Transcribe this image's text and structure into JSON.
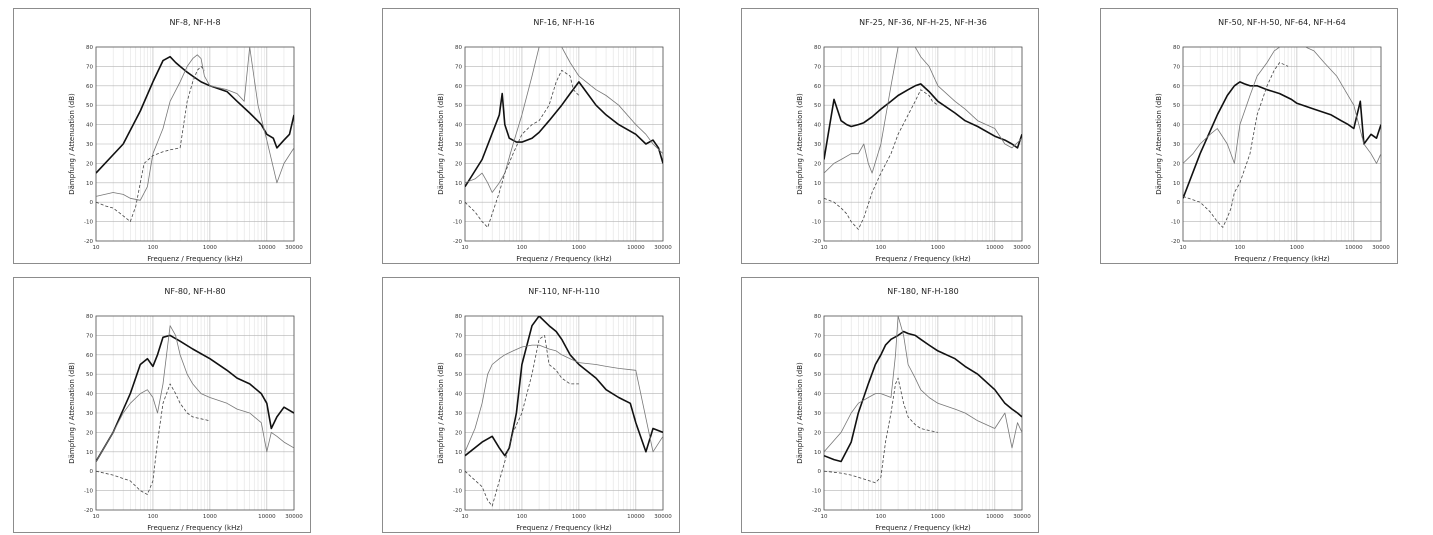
{
  "axis": {
    "xlabel": "Frequenz / Frequency (kHz)",
    "ylabel": "Dämpfung / Attenuation (dB)",
    "xlim": [
      10,
      30000
    ],
    "ylim": [
      -20,
      80
    ],
    "xscale": "log",
    "yticks": [
      -20,
      -10,
      0,
      10,
      20,
      30,
      40,
      50,
      60,
      70,
      80
    ],
    "xticks": [
      10,
      100,
      1000,
      10000,
      30000
    ]
  },
  "chart_data": [
    {
      "type": "line",
      "title": "NF-8, NF-H-8",
      "series": [
        {
          "style": "bold",
          "x": [
            10,
            30,
            60,
            100,
            150,
            200,
            250,
            300,
            400,
            500,
            700,
            1000,
            2000,
            3000,
            5000,
            8000,
            10000,
            13000,
            15000,
            20000,
            25000,
            30000
          ],
          "y": [
            15,
            30,
            47,
            62,
            73,
            75,
            72,
            70,
            67,
            65,
            62,
            60,
            57,
            52,
            46,
            40,
            35,
            33,
            28,
            32,
            35,
            45
          ]
        },
        {
          "style": "thin",
          "x": [
            10,
            20,
            30,
            40,
            60,
            80,
            100,
            150,
            200,
            300,
            400,
            500,
            600,
            700,
            800,
            1000,
            2000,
            3000,
            4000,
            5000,
            7000,
            10000,
            15000,
            20000,
            30000
          ],
          "y": [
            3,
            5,
            4,
            2,
            1,
            8,
            25,
            38,
            52,
            62,
            70,
            74,
            76,
            74,
            65,
            60,
            58,
            56,
            52,
            80,
            50,
            32,
            10,
            20,
            28
          ]
        },
        {
          "style": "dashed",
          "x": [
            10,
            15,
            20,
            30,
            40,
            50,
            70,
            100,
            150,
            200,
            300,
            400,
            500,
            600,
            700,
            800
          ],
          "y": [
            0,
            -2,
            -3,
            -7,
            -10,
            -2,
            20,
            24,
            26,
            27,
            28,
            52,
            62,
            68,
            70,
            68
          ]
        }
      ]
    },
    {
      "type": "line",
      "title": "NF-16, NF-H-16",
      "series": [
        {
          "style": "bold",
          "x": [
            10,
            20,
            40,
            45,
            50,
            60,
            80,
            100,
            150,
            200,
            300,
            500,
            700,
            1000,
            1500,
            2000,
            3000,
            5000,
            10000,
            15000,
            20000,
            25000,
            30000
          ],
          "y": [
            8,
            22,
            45,
            56,
            40,
            33,
            31,
            31,
            33,
            36,
            42,
            50,
            56,
            62,
            55,
            50,
            45,
            40,
            35,
            30,
            32,
            28,
            20
          ]
        },
        {
          "style": "thin",
          "x": [
            10,
            15,
            20,
            25,
            30,
            40,
            50,
            70,
            100,
            150,
            200,
            300,
            400,
            500,
            700,
            1000,
            2000,
            3000,
            5000,
            10000,
            15000,
            20000,
            30000
          ],
          "y": [
            10,
            12,
            15,
            10,
            5,
            10,
            15,
            30,
            45,
            65,
            80,
            85,
            85,
            80,
            72,
            65,
            58,
            55,
            50,
            40,
            35,
            30,
            25
          ]
        },
        {
          "style": "dashed",
          "x": [
            10,
            15,
            20,
            25,
            30,
            40,
            50,
            70,
            100,
            150,
            200,
            300,
            400,
            500,
            700,
            800,
            1000
          ],
          "y": [
            0,
            -5,
            -10,
            -13,
            -6,
            5,
            15,
            25,
            35,
            40,
            42,
            50,
            62,
            68,
            65,
            58,
            55
          ]
        }
      ]
    },
    {
      "type": "line",
      "title": "NF-25, NF-36, NF-H-25, NF-H-36",
      "series": [
        {
          "style": "bold",
          "x": [
            10,
            15,
            20,
            25,
            30,
            40,
            50,
            70,
            100,
            150,
            200,
            300,
            400,
            500,
            700,
            1000,
            2000,
            3000,
            5000,
            10000,
            15000,
            20000,
            25000,
            30000
          ],
          "y": [
            22,
            53,
            42,
            40,
            39,
            40,
            41,
            44,
            48,
            52,
            55,
            58,
            60,
            61,
            57,
            52,
            46,
            42,
            39,
            34,
            32,
            30,
            28,
            35
          ]
        },
        {
          "style": "thin",
          "x": [
            10,
            15,
            20,
            30,
            40,
            50,
            60,
            70,
            100,
            150,
            200,
            300,
            400,
            500,
            700,
            1000,
            2000,
            3000,
            5000,
            10000,
            15000,
            20000,
            30000
          ],
          "y": [
            15,
            20,
            22,
            25,
            25,
            30,
            20,
            15,
            30,
            60,
            80,
            85,
            80,
            75,
            70,
            60,
            52,
            48,
            42,
            38,
            30,
            28,
            33
          ]
        },
        {
          "style": "dashed",
          "x": [
            10,
            15,
            20,
            25,
            30,
            40,
            50,
            70,
            100,
            150,
            200,
            300,
            400,
            500,
            700,
            800,
            1000
          ],
          "y": [
            2,
            0,
            -3,
            -6,
            -10,
            -14,
            -8,
            5,
            15,
            25,
            35,
            45,
            52,
            58,
            55,
            52,
            50
          ]
        }
      ]
    },
    {
      "type": "line",
      "title": "NF-50, NF-H-50, NF-64, NF-H-64",
      "series": [
        {
          "style": "bold",
          "x": [
            10,
            20,
            40,
            60,
            80,
            100,
            120,
            150,
            200,
            300,
            500,
            800,
            1000,
            2000,
            4000,
            6000,
            8000,
            10000,
            13000,
            15000,
            20000,
            25000,
            30000
          ],
          "y": [
            2,
            25,
            45,
            55,
            60,
            62,
            61,
            60,
            60,
            58,
            56,
            53,
            51,
            48,
            45,
            42,
            40,
            38,
            52,
            30,
            35,
            33,
            40
          ]
        },
        {
          "style": "thin",
          "x": [
            10,
            15,
            20,
            30,
            40,
            60,
            80,
            100,
            150,
            200,
            300,
            400,
            500,
            700,
            1000,
            2000,
            3000,
            5000,
            10000,
            15000,
            20000,
            25000,
            30000
          ],
          "y": [
            20,
            25,
            30,
            35,
            38,
            30,
            20,
            40,
            55,
            65,
            72,
            78,
            80,
            82,
            82,
            78,
            72,
            65,
            50,
            30,
            25,
            20,
            25
          ]
        },
        {
          "style": "dashed",
          "x": [
            10,
            20,
            30,
            40,
            50,
            60,
            70,
            80,
            100,
            150,
            200,
            300,
            400,
            500,
            700
          ],
          "y": [
            3,
            0,
            -5,
            -10,
            -13,
            -8,
            -3,
            5,
            10,
            25,
            45,
            60,
            68,
            72,
            70
          ]
        }
      ]
    },
    {
      "type": "line",
      "title": "NF-80, NF-H-80",
      "series": [
        {
          "style": "bold",
          "x": [
            10,
            20,
            40,
            60,
            80,
            100,
            120,
            150,
            200,
            300,
            500,
            1000,
            2000,
            3000,
            5000,
            8000,
            10000,
            12000,
            15000,
            20000,
            30000
          ],
          "y": [
            5,
            20,
            40,
            55,
            58,
            54,
            60,
            69,
            70,
            67,
            63,
            58,
            52,
            48,
            45,
            40,
            35,
            22,
            28,
            33,
            30
          ]
        },
        {
          "style": "thin",
          "x": [
            10,
            20,
            30,
            40,
            60,
            80,
            100,
            120,
            150,
            200,
            250,
            300,
            400,
            500,
            700,
            1000,
            2000,
            3000,
            5000,
            8000,
            10000,
            12000,
            15000,
            20000,
            30000
          ],
          "y": [
            5,
            20,
            30,
            35,
            40,
            42,
            38,
            30,
            45,
            75,
            70,
            60,
            50,
            45,
            40,
            38,
            35,
            32,
            30,
            25,
            10,
            20,
            18,
            15,
            12
          ]
        },
        {
          "style": "dashed",
          "x": [
            10,
            20,
            40,
            60,
            80,
            100,
            120,
            150,
            200,
            250,
            300,
            400,
            500,
            700,
            1000
          ],
          "y": [
            0,
            -2,
            -5,
            -10,
            -12,
            -5,
            15,
            35,
            45,
            40,
            35,
            30,
            28,
            27,
            26
          ]
        }
      ]
    },
    {
      "type": "line",
      "title": "NF-110, NF-H-110",
      "series": [
        {
          "style": "bold",
          "x": [
            10,
            20,
            30,
            40,
            50,
            60,
            80,
            100,
            150,
            200,
            300,
            400,
            500,
            700,
            1000,
            2000,
            3000,
            5000,
            8000,
            10000,
            15000,
            20000,
            30000
          ],
          "y": [
            8,
            15,
            18,
            12,
            8,
            12,
            30,
            55,
            75,
            80,
            75,
            72,
            68,
            60,
            55,
            48,
            42,
            38,
            35,
            25,
            10,
            22,
            20
          ]
        },
        {
          "style": "thin",
          "x": [
            10,
            15,
            20,
            25,
            30,
            40,
            50,
            70,
            100,
            150,
            200,
            300,
            400,
            500,
            700,
            1000,
            2000,
            3000,
            5000,
            10000,
            20000,
            30000
          ],
          "y": [
            10,
            22,
            35,
            50,
            55,
            58,
            60,
            62,
            64,
            65,
            65,
            63,
            62,
            60,
            58,
            56,
            55,
            54,
            53,
            52,
            10,
            18
          ]
        },
        {
          "style": "dashed",
          "x": [
            10,
            20,
            25,
            30,
            40,
            50,
            70,
            100,
            150,
            200,
            250,
            300,
            400,
            500,
            700,
            1000
          ],
          "y": [
            0,
            -8,
            -15,
            -18,
            -5,
            5,
            20,
            30,
            50,
            68,
            70,
            55,
            52,
            48,
            45,
            45
          ]
        }
      ]
    },
    {
      "type": "line",
      "title": "NF-180, NF-H-180",
      "series": [
        {
          "style": "bold",
          "x": [
            10,
            15,
            20,
            30,
            40,
            60,
            80,
            100,
            120,
            150,
            200,
            250,
            300,
            400,
            500,
            700,
            1000,
            2000,
            3000,
            5000,
            10000,
            15000,
            20000,
            25000,
            30000
          ],
          "y": [
            8,
            6,
            5,
            15,
            30,
            45,
            55,
            60,
            65,
            68,
            70,
            72,
            71,
            70,
            68,
            65,
            62,
            58,
            54,
            50,
            42,
            35,
            32,
            30,
            28
          ]
        },
        {
          "style": "thin",
          "x": [
            10,
            20,
            30,
            40,
            60,
            80,
            100,
            150,
            180,
            200,
            250,
            300,
            400,
            500,
            700,
            1000,
            2000,
            3000,
            5000,
            10000,
            15000,
            20000,
            25000,
            30000
          ],
          "y": [
            10,
            20,
            30,
            35,
            38,
            40,
            40,
            38,
            60,
            80,
            70,
            55,
            48,
            42,
            38,
            35,
            32,
            30,
            26,
            22,
            30,
            12,
            25,
            20
          ]
        },
        {
          "style": "dashed",
          "x": [
            10,
            20,
            30,
            50,
            80,
            100,
            120,
            150,
            180,
            200,
            250,
            300,
            400,
            500,
            700,
            1000
          ],
          "y": [
            0,
            -1,
            -2,
            -4,
            -6,
            -3,
            15,
            30,
            45,
            48,
            35,
            28,
            24,
            22,
            21,
            20
          ]
        }
      ]
    }
  ]
}
